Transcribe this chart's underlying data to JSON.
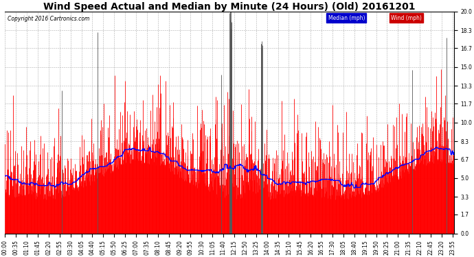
{
  "title": "Wind Speed Actual and Median by Minute (24 Hours) (Old) 20161201",
  "copyright": "Copyright 2016 Cartronics.com",
  "yticks": [
    0.0,
    1.7,
    3.3,
    5.0,
    6.7,
    8.3,
    10.0,
    11.7,
    13.3,
    15.0,
    16.7,
    18.3,
    20.0
  ],
  "ylim": [
    0.0,
    20.0
  ],
  "total_minutes": 1440,
  "wind_color": "#ff0000",
  "median_color": "#0000ff",
  "background_color": "#ffffff",
  "grid_color": "#999999",
  "legend_median_bg": "#0000cc",
  "legend_wind_bg": "#cc0000",
  "title_fontsize": 10,
  "tick_label_fontsize": 5.5,
  "xtick_interval": 35,
  "random_seed": 12345,
  "figwidth": 6.9,
  "figheight": 3.75,
  "dpi": 100
}
